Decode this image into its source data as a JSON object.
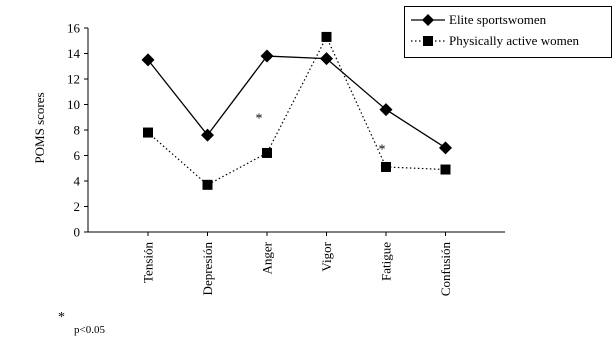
{
  "chart_data": {
    "type": "line",
    "ylabel": "POMS scores",
    "xlabel": "",
    "title": "",
    "categories": [
      "Tensión",
      "Depresión",
      "Anger",
      "Vigor",
      "Fatigue",
      "Confusión"
    ],
    "ylim": [
      0,
      16
    ],
    "yticks": [
      0,
      2,
      4,
      6,
      8,
      10,
      12,
      14,
      16
    ],
    "grid": false,
    "legend_position": "top-right",
    "series": [
      {
        "name": "Elite sportswomen",
        "marker": "diamond",
        "line_style": "solid",
        "values": [
          13.5,
          7.6,
          13.8,
          13.6,
          9.6,
          6.6
        ]
      },
      {
        "name": "Physically active women",
        "marker": "square",
        "line_style": "dotted",
        "values": [
          7.8,
          3.7,
          6.2,
          15.3,
          5.1,
          4.9
        ]
      }
    ],
    "annotations": [
      {
        "text": "*",
        "category": "Anger",
        "y": 9.2
      },
      {
        "text": "*",
        "category": "Fatigue",
        "y": 6.8
      }
    ]
  },
  "footnote": {
    "symbol": "*",
    "text": "p<0.05"
  }
}
